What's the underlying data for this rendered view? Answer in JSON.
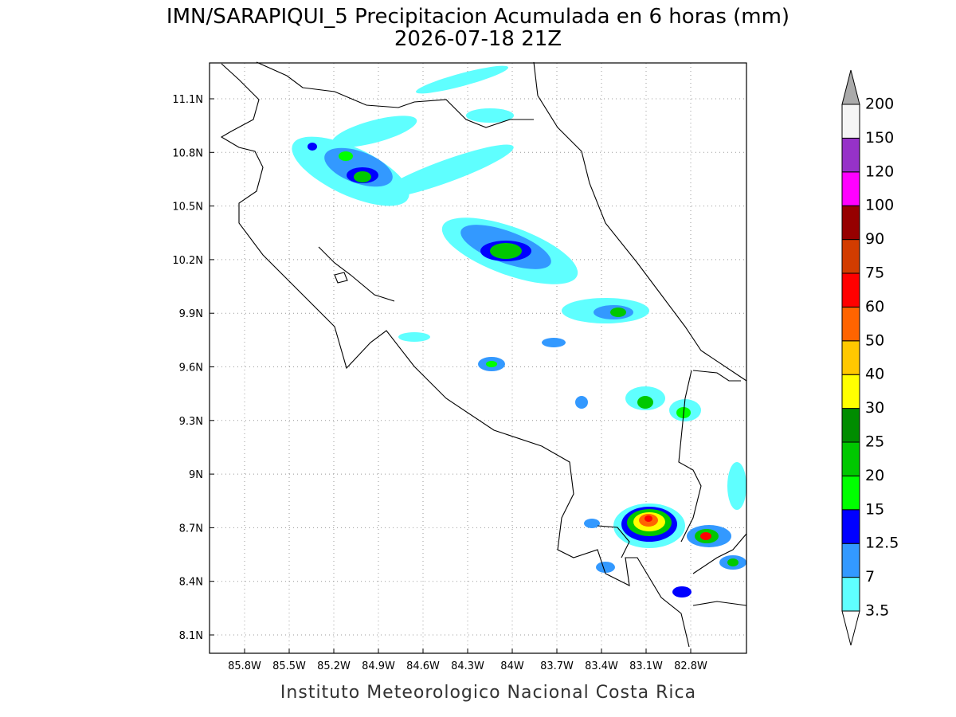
{
  "title": "IMN/SARAPIQUI_5 Precipitacion Acumulada en 6 horas (mm)",
  "subtitle": "2026-07-18 21Z",
  "x_ticks": [
    "85.8W",
    "85.5W",
    "85.2W",
    "84.9W",
    "84.6W",
    "84.3W",
    "84W",
    "83.7W",
    "83.4W",
    "83.1W",
    "82.8W"
  ],
  "y_ticks": [
    "11.1N",
    "10.8N",
    "10.5N",
    "10.2N",
    "9.9N",
    "9.6N",
    "9.3N",
    "9N",
    "8.7N",
    "8.4N",
    "8.1N"
  ],
  "colorbar": {
    "levels": [
      "3.5",
      "7",
      "12.5",
      "15",
      "20",
      "25",
      "30",
      "40",
      "50",
      "60",
      "75",
      "90",
      "100",
      "120",
      "150",
      "200"
    ],
    "box_colors": [
      "#5fffff",
      "#3399ff",
      "#0000ff",
      "#00ff00",
      "#00c800",
      "#008c00",
      "#ffff00",
      "#ffc800",
      "#ff6400",
      "#ff0000",
      "#d23c00",
      "#960000",
      "#ff00ff",
      "#9632c8",
      "#f5f5f5"
    ],
    "over_color": "#aaaaaa",
    "under_color": "#ffffff"
  },
  "footer": "Instituto Meteorologico Nacional Costa Rica"
}
